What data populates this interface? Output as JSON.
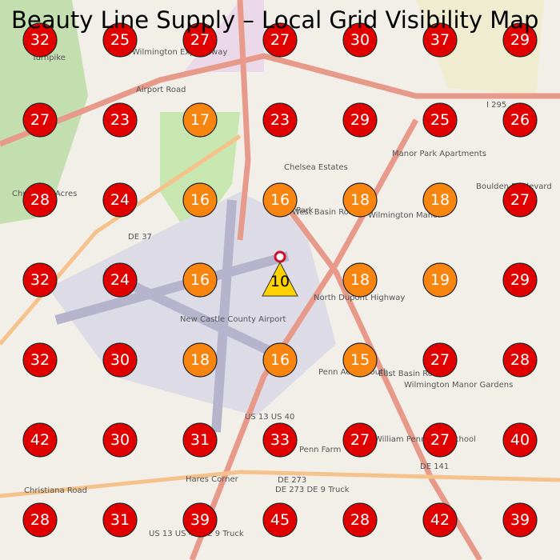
{
  "title": "Beauty Line Supply – Local Grid Visibility Map",
  "grid": {
    "rows": [
      [
        {
          "value": 32,
          "color": "#e00000"
        },
        {
          "value": 25,
          "color": "#e00000"
        },
        {
          "value": 27,
          "color": "#e00000"
        },
        {
          "value": 27,
          "color": "#e00000"
        },
        {
          "value": 30,
          "color": "#e00000"
        },
        {
          "value": 37,
          "color": "#e00000"
        },
        {
          "value": 29,
          "color": "#e00000"
        }
      ],
      [
        {
          "value": 27,
          "color": "#e00000"
        },
        {
          "value": 23,
          "color": "#e00000"
        },
        {
          "value": 17,
          "color": "#f7850f"
        },
        {
          "value": 23,
          "color": "#e00000"
        },
        {
          "value": 29,
          "color": "#e00000"
        },
        {
          "value": 25,
          "color": "#e00000"
        },
        {
          "value": 26,
          "color": "#e00000"
        }
      ],
      [
        {
          "value": 28,
          "color": "#e00000"
        },
        {
          "value": 24,
          "color": "#e00000"
        },
        {
          "value": 16,
          "color": "#f7850f"
        },
        {
          "value": 16,
          "color": "#f7850f"
        },
        {
          "value": 18,
          "color": "#f7850f"
        },
        {
          "value": 18,
          "color": "#f7850f"
        },
        {
          "value": 27,
          "color": "#e00000"
        }
      ],
      [
        {
          "value": 32,
          "color": "#e00000"
        },
        {
          "value": 24,
          "color": "#e00000"
        },
        {
          "value": 16,
          "color": "#f7850f"
        },
        {
          "value": 10,
          "color": "#ffd200",
          "shape": "triangle"
        },
        {
          "value": 18,
          "color": "#f7850f"
        },
        {
          "value": 19,
          "color": "#f7850f"
        },
        {
          "value": 29,
          "color": "#e00000"
        }
      ],
      [
        {
          "value": 32,
          "color": "#e00000"
        },
        {
          "value": 30,
          "color": "#e00000"
        },
        {
          "value": 18,
          "color": "#f7850f"
        },
        {
          "value": 16,
          "color": "#f7850f"
        },
        {
          "value": 15,
          "color": "#f7850f"
        },
        {
          "value": 27,
          "color": "#e00000"
        },
        {
          "value": 28,
          "color": "#e00000"
        }
      ],
      [
        {
          "value": 42,
          "color": "#e00000"
        },
        {
          "value": 30,
          "color": "#e00000"
        },
        {
          "value": 31,
          "color": "#e00000"
        },
        {
          "value": 33,
          "color": "#e00000"
        },
        {
          "value": 27,
          "color": "#e00000"
        },
        {
          "value": 27,
          "color": "#e00000"
        },
        {
          "value": 40,
          "color": "#e00000"
        }
      ],
      [
        {
          "value": 28,
          "color": "#e00000"
        },
        {
          "value": 31,
          "color": "#e00000"
        },
        {
          "value": 39,
          "color": "#e00000"
        },
        {
          "value": 45,
          "color": "#e00000"
        },
        {
          "value": 28,
          "color": "#e00000"
        },
        {
          "value": 42,
          "color": "#e00000"
        },
        {
          "value": 39,
          "color": "#e00000"
        }
      ]
    ]
  },
  "map_labels": [
    "Chelsea Estates",
    "Manor Park Apartments",
    "Wilmington Manor",
    "New Castle County Airport",
    "Christiana Acres",
    "DE 37",
    "Airport Road",
    "Wilmington Expressway",
    "I 295",
    "Boulden Boulevard",
    "West Basin Road",
    "North Dupont Highway",
    "East Basin Road",
    "Penn Acres South",
    "Wilmington Manor Gardens",
    "US 13 US 40",
    "Penn Farm",
    "William Penn High School",
    "DE 141",
    "Christiana Road",
    "DE 273",
    "Hares Corner",
    "DE 273 DE 9 Truck",
    "US 13 US 40 DE 9 Truck",
    "Turnpike",
    "Park"
  ]
}
